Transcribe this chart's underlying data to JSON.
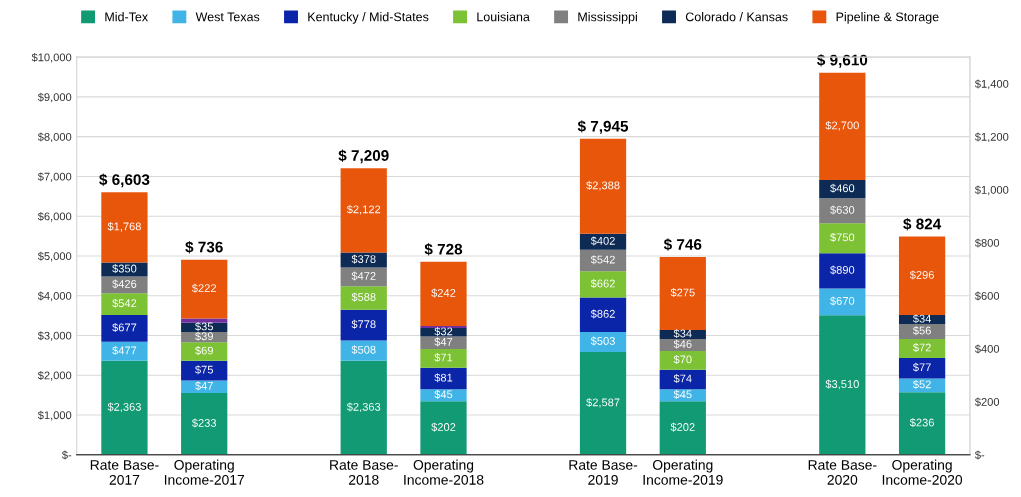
{
  "chart_data": {
    "type": "bar",
    "stacked": true,
    "grid": "y",
    "legend": "top",
    "categories": [
      "Rate Base-\n2017",
      "Operating\nIncome-2017",
      null,
      "Rate Base-\n2018",
      "Operating\nIncome-2018",
      null,
      "Rate Base-\n2019",
      "Operating\nIncome-2019",
      null,
      "Rate Base-\n2020",
      "Operating\nIncome-2020"
    ],
    "ylim": [
      0,
      10000
    ],
    "yticks": [
      {
        "value": 0,
        "label": "$-"
      },
      {
        "value": 1000,
        "label": "$1,000"
      },
      {
        "value": 2000,
        "label": "$2,000"
      },
      {
        "value": 3000,
        "label": "$3,000"
      },
      {
        "value": 4000,
        "label": "$4,000"
      },
      {
        "value": 5000,
        "label": "$5,000"
      },
      {
        "value": 6000,
        "label": "$6,000"
      },
      {
        "value": 7000,
        "label": "$7,000"
      },
      {
        "value": 8000,
        "label": "$8,000"
      },
      {
        "value": 9000,
        "label": "$9,000"
      },
      {
        "value": 10000,
        "label": "$10,000"
      }
    ],
    "y2lim": [
      0,
      1500
    ],
    "y2ticks": [
      {
        "value": 0,
        "label": "$-"
      },
      {
        "value": 200,
        "label": "$200"
      },
      {
        "value": 400,
        "label": "$400"
      },
      {
        "value": 600,
        "label": "$600"
      },
      {
        "value": 800,
        "label": "$800"
      },
      {
        "value": 1000,
        "label": "$1,000"
      },
      {
        "value": 1200,
        "label": "$1,200"
      },
      {
        "value": 1400,
        "label": "$1,400"
      }
    ],
    "totals": [
      "$ 6,603",
      null,
      null,
      "$ 7,209",
      null,
      null,
      "$ 7,945",
      null,
      null,
      "$ 9,610",
      null
    ],
    "annotations": [
      "$ 736",
      "$ 728",
      "$ 746",
      "$ 824"
    ],
    "series": [
      {
        "name": "Mid-Tex",
        "color": "#119a73",
        "values": [
          2363,
          null,
          null,
          2363,
          null,
          null,
          2587,
          null,
          null,
          3510,
          null
        ],
        "value_labels": [
          "$2,363",
          null,
          null,
          "$2,363",
          null,
          null,
          "$2,587",
          null,
          null,
          "$3,510",
          null
        ]
      },
      {
        "name": "West Texas",
        "color": "#40b4e6",
        "values": [
          477,
          null,
          null,
          508,
          null,
          null,
          503,
          null,
          null,
          670,
          null
        ],
        "value_labels": [
          "$477",
          null,
          null,
          "$508",
          null,
          null,
          "$503",
          null,
          null,
          "$670",
          null
        ]
      },
      {
        "name": "Kentucky / Mid-States",
        "color": "#0b25a8",
        "values": [
          677,
          null,
          null,
          778,
          null,
          null,
          862,
          null,
          null,
          890,
          null
        ],
        "value_labels": [
          "$677",
          null,
          null,
          "$778",
          null,
          null,
          "$862",
          null,
          null,
          "$890",
          null
        ]
      },
      {
        "name": "Louisiana",
        "color": "#7cc234",
        "values": [
          542,
          null,
          null,
          588,
          null,
          null,
          662,
          null,
          null,
          750,
          null
        ],
        "value_labels": [
          "$542",
          null,
          null,
          "$588",
          null,
          null,
          "$662",
          null,
          null,
          "$750",
          null
        ]
      },
      {
        "name": "Mississippi",
        "color": "#808080",
        "values": [
          426,
          null,
          null,
          472,
          null,
          null,
          542,
          null,
          null,
          630,
          null
        ],
        "value_labels": [
          "$426",
          null,
          null,
          "$472",
          null,
          null,
          "$542",
          null,
          null,
          "$630",
          null
        ]
      },
      {
        "name": "Colorado / Kansas",
        "color": "#0d2b55",
        "values": [
          350,
          null,
          null,
          378,
          null,
          null,
          402,
          null,
          null,
          460,
          null
        ],
        "value_labels": [
          "$350",
          null,
          null,
          "$378",
          null,
          null,
          "$402",
          null,
          null,
          "$460",
          null
        ]
      },
      {
        "name": "Pipeline & Storage",
        "color": "#e8560c",
        "values": [
          1768,
          null,
          null,
          2122,
          null,
          null,
          2388,
          null,
          null,
          2700,
          null
        ],
        "value_labels": [
          "$1,768",
          null,
          null,
          "$2,122",
          null,
          null,
          "$2,388",
          null,
          null,
          "$2,700",
          null
        ]
      },
      {
        "axis": "y2",
        "color": "#119a73",
        "values": [
          null,
          233,
          null,
          null,
          202,
          null,
          null,
          202,
          null,
          null,
          236
        ],
        "value_labels": [
          null,
          "$233",
          null,
          null,
          "$202",
          null,
          null,
          "$202",
          null,
          null,
          "$236"
        ]
      },
      {
        "axis": "y2",
        "color": "#40b4e6",
        "values": [
          null,
          47,
          null,
          null,
          45,
          null,
          null,
          45,
          null,
          null,
          52
        ],
        "value_labels": [
          null,
          "$47",
          null,
          null,
          "$45",
          null,
          null,
          "$45",
          null,
          null,
          "$52"
        ]
      },
      {
        "axis": "y2",
        "color": "#0b25a8",
        "values": [
          null,
          75,
          null,
          null,
          81,
          null,
          null,
          74,
          null,
          null,
          77
        ],
        "value_labels": [
          null,
          "$75",
          null,
          null,
          "$81",
          null,
          null,
          "$74",
          null,
          null,
          "$77"
        ]
      },
      {
        "axis": "y2",
        "color": "#7cc234",
        "values": [
          null,
          69,
          null,
          null,
          71,
          null,
          null,
          70,
          null,
          null,
          72
        ],
        "value_labels": [
          null,
          "$69",
          null,
          null,
          "$71",
          null,
          null,
          "$70",
          null,
          null,
          "$72"
        ]
      },
      {
        "axis": "y2",
        "color": "#808080",
        "values": [
          null,
          39,
          null,
          null,
          47,
          null,
          null,
          46,
          null,
          null,
          56
        ],
        "value_labels": [
          null,
          "$39",
          null,
          null,
          "$47",
          null,
          null,
          "$46",
          null,
          null,
          "$56"
        ]
      },
      {
        "axis": "y2",
        "color": "#0d2b55",
        "values": [
          null,
          35,
          null,
          null,
          32,
          null,
          null,
          34,
          null,
          null,
          34
        ],
        "value_labels": [
          null,
          "$35",
          null,
          null,
          "$32",
          null,
          null,
          "$34",
          null,
          null,
          "$34"
        ]
      },
      {
        "axis": "y2",
        "color": "#7030a0",
        "values": [
          null,
          16,
          null,
          null,
          8,
          null,
          null,
          null,
          null,
          null,
          null
        ]
      },
      {
        "axis": "y2",
        "color": "#e8560c",
        "values": [
          null,
          222,
          null,
          null,
          242,
          null,
          null,
          275,
          null,
          null,
          296
        ],
        "value_labels": [
          null,
          "$222",
          null,
          null,
          "$242",
          null,
          null,
          "$275",
          null,
          null,
          "$296"
        ]
      }
    ]
  }
}
